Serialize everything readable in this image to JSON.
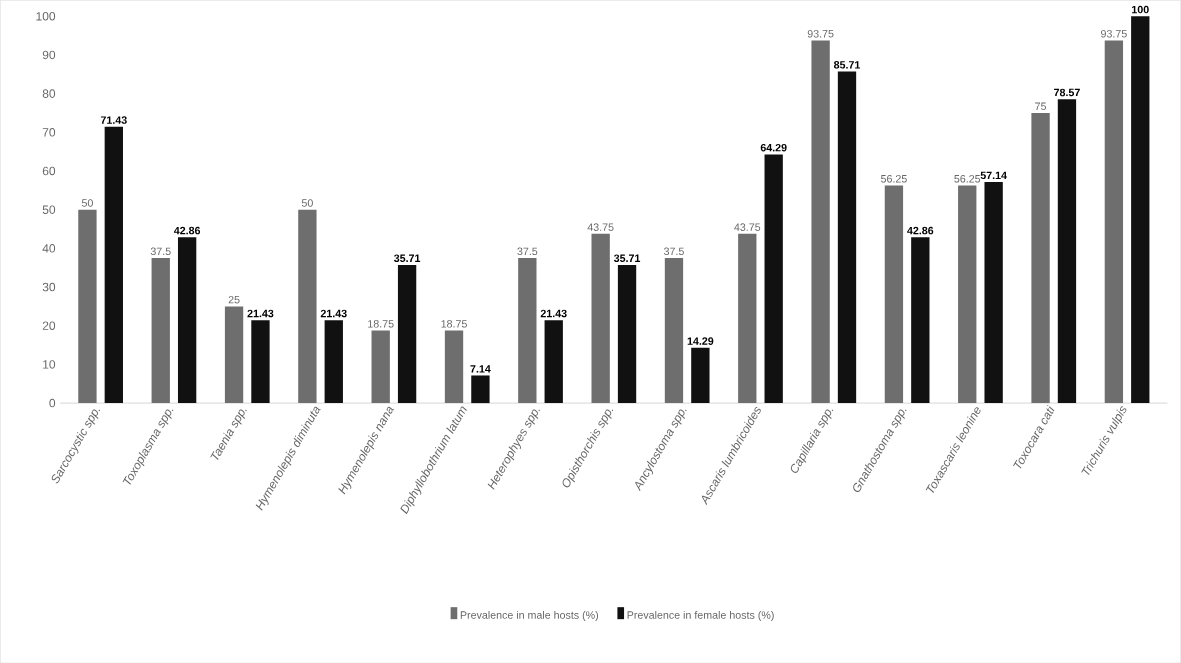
{
  "chart_data": {
    "type": "bar",
    "categories": [
      "Sarcocystic spp.",
      "Toxoplasma spp.",
      "Taenia spp.",
      "Hymenolepis diminuta",
      "Hymenolepis nana",
      "Diphyllobothrium latum",
      "Heterophyes spp.",
      "Opisthorchis spp.",
      "Ancylostoma spp.",
      "Ascaris lumbricoides",
      "Capillaria spp.",
      "Gnathostoma spp.",
      "Toxascaris leonine",
      "Toxocara cati",
      "Trichuris vulpis"
    ],
    "series": [
      {
        "name": "Prevalence in male hosts (%)",
        "color": "#6e6e6e",
        "values": [
          50,
          37.5,
          25,
          50,
          18.75,
          18.75,
          37.5,
          43.75,
          37.5,
          43.75,
          93.75,
          56.25,
          56.25,
          75,
          93.75
        ]
      },
      {
        "name": "Prevalence in female hosts (%)",
        "color": "#111111",
        "values": [
          71.43,
          42.86,
          21.43,
          21.43,
          35.71,
          7.14,
          21.43,
          35.71,
          14.29,
          64.29,
          85.71,
          42.86,
          57.14,
          78.57,
          100
        ]
      }
    ],
    "ylim": [
      0,
      100
    ],
    "yticks": [
      0,
      10,
      20,
      30,
      40,
      50,
      60,
      70,
      80,
      90,
      100
    ],
    "data_labels": true,
    "grid": false,
    "legend": "bottom"
  }
}
